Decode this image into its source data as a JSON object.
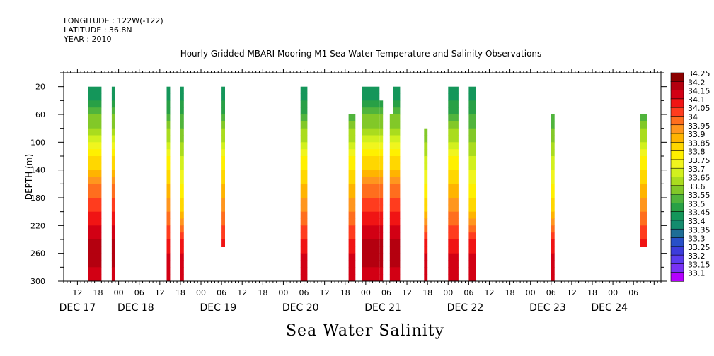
{
  "header": {
    "longitude": "LONGITUDE : 122W(-122)",
    "latitude": "LATITUDE : 36.8N",
    "year": "YEAR : 2010"
  },
  "title": "Hourly Gridded MBARI Mooring M1 Sea Water Temperature and Salinity Observations",
  "footer_title": "Sea Water Salinity",
  "chart_data": {
    "type": "heatmap",
    "title": "Hourly Gridded MBARI Mooring M1 Sea Water Temperature and Salinity Observations",
    "xlabel": "",
    "ylabel": "DEPTH (m)",
    "x_unit": "hours from DEC 17 00:00 (2010)",
    "xlim": [
      8,
      182
    ],
    "ylim": [
      300,
      0
    ],
    "y_ticks": [
      20,
      60,
      100,
      140,
      180,
      220,
      260,
      300
    ],
    "x_hour_labels": [
      {
        "h": 12,
        "label": "12"
      },
      {
        "h": 18,
        "label": "18"
      },
      {
        "h": 24,
        "label": "00"
      },
      {
        "h": 30,
        "label": "06"
      },
      {
        "h": 36,
        "label": "12"
      },
      {
        "h": 42,
        "label": "18"
      },
      {
        "h": 48,
        "label": "00"
      },
      {
        "h": 54,
        "label": "06"
      },
      {
        "h": 60,
        "label": "12"
      },
      {
        "h": 66,
        "label": "18"
      },
      {
        "h": 72,
        "label": "00"
      },
      {
        "h": 78,
        "label": "06"
      },
      {
        "h": 84,
        "label": "12"
      },
      {
        "h": 90,
        "label": "18"
      },
      {
        "h": 96,
        "label": "00"
      },
      {
        "h": 102,
        "label": "06"
      },
      {
        "h": 108,
        "label": "12"
      },
      {
        "h": 114,
        "label": "18"
      },
      {
        "h": 120,
        "label": "00"
      },
      {
        "h": 126,
        "label": "06"
      },
      {
        "h": 132,
        "label": "12"
      },
      {
        "h": 138,
        "label": "18"
      },
      {
        "h": 144,
        "label": "00"
      },
      {
        "h": 150,
        "label": "06"
      },
      {
        "h": 156,
        "label": "12"
      },
      {
        "h": 162,
        "label": "18"
      },
      {
        "h": 168,
        "label": "00"
      },
      {
        "h": 174,
        "label": "06"
      }
    ],
    "x_day_labels": [
      {
        "h": 12,
        "label": "DEC 17"
      },
      {
        "h": 29,
        "label": "DEC 18"
      },
      {
        "h": 53,
        "label": "DEC 19"
      },
      {
        "h": 77,
        "label": "DEC 20"
      },
      {
        "h": 101,
        "label": "DEC 21"
      },
      {
        "h": 125,
        "label": "DEC 22"
      },
      {
        "h": 149,
        "label": "DEC 23"
      },
      {
        "h": 167,
        "label": "DEC 24"
      }
    ],
    "colorbar": {
      "levels": [
        "34.25",
        "34.2",
        "34.15",
        "34.1",
        "34.05",
        "34",
        "33.95",
        "33.9",
        "33.85",
        "33.8",
        "33.75",
        "33.7",
        "33.65",
        "33.6",
        "33.55",
        "33.5",
        "33.45",
        "33.4",
        "33.35",
        "33.3",
        "33.25",
        "33.2",
        "33.15",
        "33.1"
      ],
      "colors": [
        "#8b0000",
        "#b4000f",
        "#d20014",
        "#f01414",
        "#ff3c1e",
        "#ff6e1e",
        "#ff961e",
        "#ffb400",
        "#ffd700",
        "#fff000",
        "#f0f51e",
        "#d2f01e",
        "#aadc1e",
        "#82c828",
        "#50b43c",
        "#28a046",
        "#14965a",
        "#148c6e",
        "#1e6e96",
        "#2850c8",
        "#3c3cdc",
        "#5a3cf0",
        "#7832f5",
        "#b400ff"
      ]
    },
    "profiles": {
      "A": {
        "20": 33.45,
        "40": 33.5,
        "60": 33.6,
        "80": 33.65,
        "100": 33.75,
        "120": 33.85,
        "140": 33.9,
        "160": 34.0,
        "180": 34.05,
        "200": 34.1,
        "220": 34.15,
        "240": 34.2,
        "260": 34.25,
        "280": 34.2,
        "300": 34.15
      },
      "B": {
        "20": 33.45,
        "40": 33.5,
        "60": 33.55,
        "80": 33.65,
        "100": 33.7,
        "120": 33.8,
        "140": 33.85,
        "160": 33.9,
        "180": 33.95,
        "200": 34.0,
        "220": 34.05,
        "240": 34.1,
        "260": 34.15,
        "280": 34.15,
        "300": 34.15
      },
      "C": {
        "20": 33.45,
        "40": 33.5,
        "60": 33.55,
        "80": 33.6,
        "100": 33.65,
        "120": 33.7,
        "140": 33.75,
        "160": 33.8,
        "180": 33.85,
        "200": 33.9,
        "220": 34.0,
        "240": 34.1,
        "260": 34.15,
        "280": 34.15,
        "300": 34.15
      }
    },
    "columns": [
      {
        "start_h": 15,
        "end_h": 19,
        "top": 20,
        "bottom": 300,
        "profile": "A"
      },
      {
        "start_h": 22,
        "end_h": 23,
        "top": 20,
        "bottom": 300,
        "profile": "A"
      },
      {
        "start_h": 38,
        "end_h": 39,
        "top": 20,
        "bottom": 300,
        "profile": "B"
      },
      {
        "start_h": 42,
        "end_h": 43,
        "top": 20,
        "bottom": 300,
        "profile": "C"
      },
      {
        "start_h": 54,
        "end_h": 55,
        "top": 20,
        "bottom": 250,
        "profile": "B"
      },
      {
        "start_h": 77,
        "end_h": 79,
        "top": 20,
        "bottom": 300,
        "profile": "B"
      },
      {
        "start_h": 91,
        "end_h": 93,
        "top": 60,
        "bottom": 300,
        "profile": "B"
      },
      {
        "start_h": 95,
        "end_h": 100,
        "top": 20,
        "bottom": 300,
        "profile": "A"
      },
      {
        "start_h": 100,
        "end_h": 101,
        "top": 40,
        "bottom": 300,
        "profile": "A"
      },
      {
        "start_h": 103,
        "end_h": 104,
        "top": 60,
        "bottom": 300,
        "profile": "A"
      },
      {
        "start_h": 104,
        "end_h": 106,
        "top": 20,
        "bottom": 300,
        "profile": "A"
      },
      {
        "start_h": 113,
        "end_h": 114,
        "top": 80,
        "bottom": 300,
        "profile": "C"
      },
      {
        "start_h": 120,
        "end_h": 123,
        "top": 20,
        "bottom": 300,
        "profile": "B"
      },
      {
        "start_h": 126,
        "end_h": 128,
        "top": 20,
        "bottom": 300,
        "profile": "C"
      },
      {
        "start_h": 150,
        "end_h": 151,
        "top": 60,
        "bottom": 300,
        "profile": "C"
      },
      {
        "start_h": 176,
        "end_h": 178,
        "top": 60,
        "bottom": 250,
        "profile": "B"
      }
    ]
  }
}
